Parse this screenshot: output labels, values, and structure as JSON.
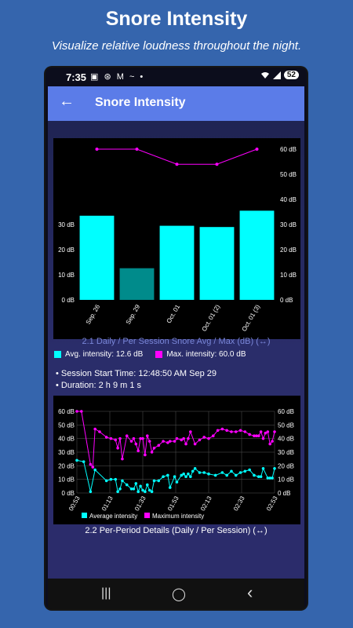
{
  "promo": {
    "title": "Snore Intensity",
    "subtitle": "Visualize relative loudness throughout the night."
  },
  "statusbar": {
    "time": "7:35",
    "left_icons": "▣ ⊛ M ~ •",
    "wifi": "wifi-icon",
    "signal": "signal-icon",
    "battery": "52"
  },
  "appbar": {
    "back_icon": "arrow-left-icon",
    "title": "Snore Intensity"
  },
  "colors": {
    "bar_cyan": "#00ffff",
    "bar_selected": "#008b8b",
    "max_line": "#ff00ff",
    "appbar": "#5b7ce8",
    "caption_blue": "#7a87d9"
  },
  "chart1": {
    "caption": "2.1 Daily / Per Session Snore Avg / Max (dB) (↔)",
    "legend_avg": "Avg. intensity: 12.6 dB",
    "legend_max": "Max. intensity: 60.0 dB"
  },
  "session": {
    "start": "• Session Start Time: 12:48:50 AM  Sep 29",
    "duration": "• Duration: 2 h 9 m 1 s"
  },
  "chart2": {
    "caption": "2.2 Per-Period Details (Daily / Per Session) (↔)",
    "legend_avg": "Average intensity",
    "legend_max": "Maximum intensity"
  },
  "navbar": {
    "recents": "|||",
    "home": "◯",
    "back": "‹"
  },
  "chart_data": [
    {
      "type": "bar",
      "categories": [
        "Sep. 26",
        "Sep. 29",
        "Oct. 01",
        "Oct. 01 (2)",
        "Oct. 01 (3)"
      ],
      "series": [
        {
          "name": "Avg. intensity",
          "values": [
            33.5,
            12.6,
            29.5,
            29,
            35.5
          ]
        },
        {
          "name": "Max. intensity",
          "values": [
            60,
            60,
            54,
            54,
            60
          ]
        }
      ],
      "selected_index": 1,
      "yticks_left": [
        "0 dB",
        "10 dB",
        "20 dB",
        "30 dB"
      ],
      "yticks_right": [
        "0 dB",
        "10 dB",
        "20 dB",
        "30 dB",
        "40 dB",
        "50 dB",
        "60 dB"
      ],
      "ylim": [
        0,
        60
      ]
    },
    {
      "type": "line",
      "xticks": [
        "00:53",
        "01:13",
        "01:33",
        "01:53",
        "02:13",
        "02:33",
        "02:53"
      ],
      "yticks": [
        "0 dB",
        "10 dB",
        "20 dB",
        "30 dB",
        "40 dB",
        "50 dB",
        "60 dB"
      ],
      "ylim": [
        0,
        60
      ],
      "grid": true,
      "legend": "bottom",
      "series": [
        {
          "name": "Average intensity",
          "points": [
            [
              0,
              24
            ],
            [
              3,
              23
            ],
            [
              6,
              1
            ],
            [
              8,
              17
            ],
            [
              13,
              9
            ],
            [
              15,
              10
            ],
            [
              17,
              10
            ],
            [
              18,
              1
            ],
            [
              19,
              3
            ],
            [
              20,
              9
            ],
            [
              22,
              6
            ],
            [
              24,
              3
            ],
            [
              25,
              3
            ],
            [
              26,
              7
            ],
            [
              27,
              1
            ],
            [
              28,
              5
            ],
            [
              29,
              2
            ],
            [
              30,
              1
            ],
            [
              31,
              6
            ],
            [
              32,
              2
            ],
            [
              33,
              1
            ],
            [
              34,
              9
            ],
            [
              36,
              9
            ],
            [
              38,
              12
            ],
            [
              40,
              13
            ],
            [
              41,
              4
            ],
            [
              43,
              12
            ],
            [
              44,
              8
            ],
            [
              46,
              13
            ],
            [
              47,
              14
            ],
            [
              48,
              12
            ],
            [
              49,
              14
            ],
            [
              50,
              12
            ],
            [
              51,
              16
            ],
            [
              52,
              18
            ],
            [
              54,
              15
            ],
            [
              56,
              15
            ],
            [
              58,
              14
            ],
            [
              61,
              13
            ],
            [
              64,
              15
            ],
            [
              66,
              13
            ],
            [
              68,
              16
            ],
            [
              70,
              13
            ],
            [
              72,
              15
            ],
            [
              74,
              16
            ],
            [
              76,
              17
            ],
            [
              78,
              13
            ],
            [
              80,
              12
            ],
            [
              81,
              12
            ],
            [
              82,
              18
            ],
            [
              84,
              11
            ],
            [
              85,
              11
            ],
            [
              86,
              11
            ],
            [
              87,
              18
            ]
          ]
        },
        {
          "name": "Maximum intensity",
          "points": [
            [
              0,
              60
            ],
            [
              2,
              60
            ],
            [
              6,
              21
            ],
            [
              7,
              19
            ],
            [
              8,
              47
            ],
            [
              10,
              45
            ],
            [
              13,
              41
            ],
            [
              15,
              40
            ],
            [
              17,
              39
            ],
            [
              18,
              33
            ],
            [
              19,
              40
            ],
            [
              20,
              25
            ],
            [
              22,
              42
            ],
            [
              24,
              38
            ],
            [
              25,
              40
            ],
            [
              26,
              36
            ],
            [
              27,
              31
            ],
            [
              28,
              40
            ],
            [
              29,
              40
            ],
            [
              30,
              28
            ],
            [
              31,
              42
            ],
            [
              32,
              38
            ],
            [
              33,
              30
            ],
            [
              34,
              33
            ],
            [
              36,
              35
            ],
            [
              38,
              38
            ],
            [
              40,
              37
            ],
            [
              41,
              38
            ],
            [
              43,
              38
            ],
            [
              44,
              40
            ],
            [
              46,
              39
            ],
            [
              47,
              40
            ],
            [
              48,
              36
            ],
            [
              49,
              40
            ],
            [
              50,
              45
            ],
            [
              52,
              36
            ],
            [
              54,
              39
            ],
            [
              56,
              41
            ],
            [
              58,
              40
            ],
            [
              60,
              42
            ],
            [
              62,
              46
            ],
            [
              64,
              47
            ],
            [
              66,
              46
            ],
            [
              68,
              45
            ],
            [
              70,
              45
            ],
            [
              72,
              46
            ],
            [
              74,
              45
            ],
            [
              76,
              43
            ],
            [
              78,
              42
            ],
            [
              79,
              42
            ],
            [
              80,
              42
            ],
            [
              81,
              45
            ],
            [
              82,
              40
            ],
            [
              83,
              44
            ],
            [
              84,
              45
            ],
            [
              85,
              36
            ],
            [
              86,
              38
            ],
            [
              87,
              45
            ]
          ]
        }
      ]
    }
  ]
}
